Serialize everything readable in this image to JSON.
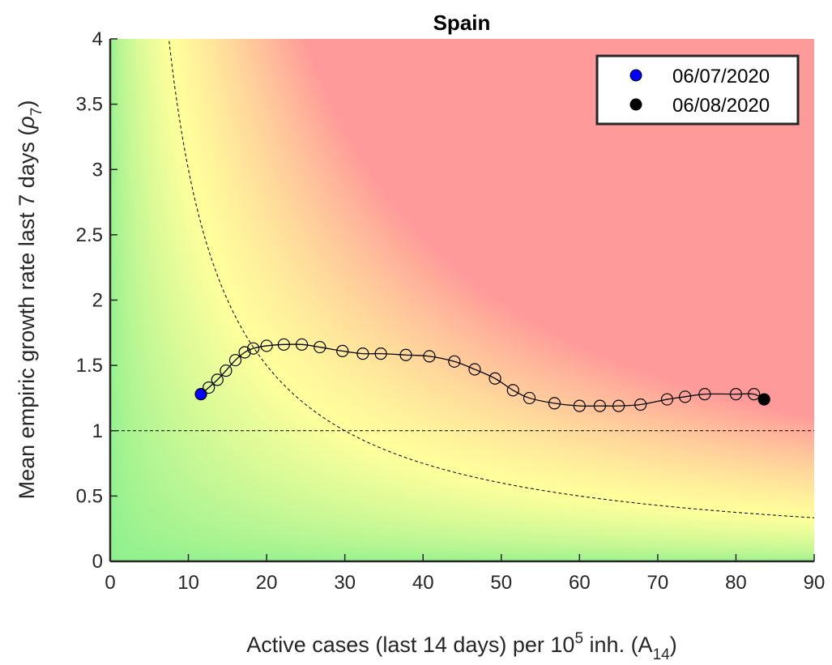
{
  "chart_data": {
    "type": "scatter",
    "title": "Spain",
    "xlabel": {
      "prefix": "Active cases (last 14 days) per 10",
      "sup": "5",
      "middle": " inh. (A",
      "sub": "14",
      "suffix": ")"
    },
    "ylabel": {
      "prefix": "Mean empiric growth rate last 7 days (",
      "symbol": "ρ",
      "sub": "7",
      "suffix": ")"
    },
    "xlim": [
      0,
      90
    ],
    "ylim": [
      0,
      4
    ],
    "xticks": [
      0,
      10,
      20,
      30,
      40,
      50,
      60,
      70,
      80,
      90
    ],
    "yticks": [
      0,
      0.5,
      1,
      1.5,
      2,
      2.5,
      3,
      3.5,
      4
    ],
    "ytick_labels": [
      "0",
      "0.5",
      "1",
      "1.5",
      "2",
      "2.5",
      "3",
      "3.5",
      "4"
    ],
    "grid": false,
    "legend_position": "top-right",
    "background": "risk-gradient",
    "colors": {
      "green": "#8ef08e",
      "yellow": "#ffff9c",
      "red": "#ff9a9a",
      "start_marker": "#0000ff",
      "end_marker": "#000000",
      "axis": "#262626"
    },
    "reference_lines": [
      {
        "kind": "horizontal",
        "y": 1
      },
      {
        "kind": "curve",
        "equation": "x*y = 30"
      }
    ],
    "series": [
      {
        "x": [
          11.6,
          12.6,
          13.7,
          14.8,
          16.0,
          17.2,
          18.3,
          20.0,
          22.2,
          24.5,
          26.8,
          29.7,
          32.3,
          34.6,
          37.8,
          40.8,
          44.0,
          46.6,
          49.2,
          51.5,
          53.6,
          56.8,
          60.0,
          62.6,
          65.0,
          67.8,
          71.2,
          73.5,
          76.0,
          80.0,
          82.3,
          83.6
        ],
        "y": [
          1.28,
          1.33,
          1.39,
          1.46,
          1.54,
          1.6,
          1.63,
          1.65,
          1.66,
          1.66,
          1.64,
          1.61,
          1.59,
          1.59,
          1.58,
          1.57,
          1.53,
          1.47,
          1.4,
          1.31,
          1.25,
          1.21,
          1.19,
          1.19,
          1.19,
          1.2,
          1.24,
          1.26,
          1.28,
          1.28,
          1.28,
          1.24
        ]
      }
    ],
    "legend": [
      {
        "label": "06/07/2020",
        "color": "#0000ff"
      },
      {
        "label": "06/08/2020",
        "color": "#000000"
      }
    ]
  }
}
